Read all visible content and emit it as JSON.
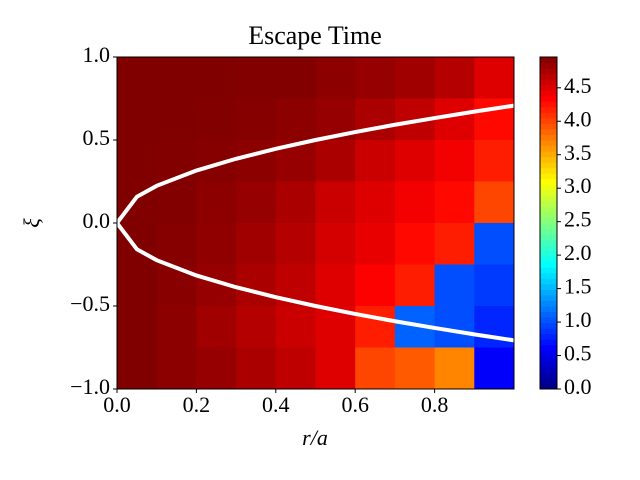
{
  "chart_data": {
    "type": "heatmap",
    "title": "Escape Time",
    "x_label": "r/a",
    "y_label": "ξ",
    "xlim": [
      0,
      1
    ],
    "ylim": [
      -1,
      1
    ],
    "xticks": [
      {
        "value": 0,
        "label": "0.0"
      },
      {
        "value": 0.2,
        "label": "0.2"
      },
      {
        "value": 0.4,
        "label": "0.4"
      },
      {
        "value": 0.6,
        "label": "0.6"
      },
      {
        "value": 0.8,
        "label": "0.8"
      }
    ],
    "yticks": [
      {
        "value": -1,
        "label": "−1.0"
      },
      {
        "value": -0.5,
        "label": "−0.5"
      },
      {
        "value": 0,
        "label": "0.0"
      },
      {
        "value": 0.5,
        "label": "0.5"
      },
      {
        "value": 1,
        "label": "1.0"
      }
    ],
    "colormap": "jet",
    "clim": [
      0,
      4.96
    ],
    "cticks": [
      {
        "value": 0,
        "label": "0.0"
      },
      {
        "value": 0.5,
        "label": "0.5"
      },
      {
        "value": 1,
        "label": "1.0"
      },
      {
        "value": 1.5,
        "label": "1.5"
      },
      {
        "value": 2,
        "label": "2.0"
      },
      {
        "value": 2.5,
        "label": "2.5"
      },
      {
        "value": 3,
        "label": "3.0"
      },
      {
        "value": 3.5,
        "label": "3.5"
      },
      {
        "value": 4,
        "label": "4.0"
      },
      {
        "value": 4.5,
        "label": "4.5"
      }
    ],
    "x_centers": [
      0.05,
      0.15,
      0.25,
      0.35,
      0.45,
      0.55,
      0.65,
      0.75,
      0.85,
      0.95
    ],
    "y_centers": [
      0.875,
      0.625,
      0.375,
      0.125,
      -0.125,
      -0.375,
      -0.625,
      -0.875
    ],
    "z": [
      [
        4.96,
        4.96,
        4.96,
        4.95,
        4.95,
        4.9,
        4.85,
        4.8,
        4.7,
        4.5
      ],
      [
        4.96,
        4.96,
        4.95,
        4.93,
        4.9,
        4.85,
        4.75,
        4.65,
        4.5,
        4.3
      ],
      [
        4.96,
        4.95,
        4.93,
        4.9,
        4.85,
        4.75,
        4.6,
        4.5,
        4.4,
        4.2
      ],
      [
        4.96,
        4.95,
        4.9,
        4.85,
        4.75,
        4.6,
        4.5,
        4.4,
        4.3,
        4.0
      ],
      [
        4.96,
        4.93,
        4.88,
        4.8,
        4.7,
        4.55,
        4.45,
        4.3,
        4.2,
        1.0
      ],
      [
        4.96,
        4.92,
        4.85,
        4.75,
        4.65,
        4.5,
        4.35,
        4.2,
        1.0,
        0.9
      ],
      [
        4.96,
        4.9,
        4.8,
        4.7,
        4.6,
        4.5,
        4.2,
        1.1,
        1.0,
        0.8
      ],
      [
        4.96,
        4.9,
        4.85,
        4.75,
        4.65,
        4.5,
        4.0,
        3.9,
        3.7,
        0.6
      ]
    ],
    "boundary": {
      "color": "#ffffff",
      "x": [
        0,
        0.05,
        0.1,
        0.2,
        0.3,
        0.4,
        0.5,
        0.6,
        0.7,
        0.8,
        0.9,
        1.0
      ],
      "upper": [
        0,
        0.158,
        0.224,
        0.316,
        0.387,
        0.447,
        0.5,
        0.548,
        0.592,
        0.632,
        0.671,
        0.707
      ],
      "lower": [
        0,
        -0.158,
        -0.224,
        -0.316,
        -0.387,
        -0.447,
        -0.5,
        -0.548,
        -0.592,
        -0.632,
        -0.671,
        -0.707
      ]
    }
  }
}
